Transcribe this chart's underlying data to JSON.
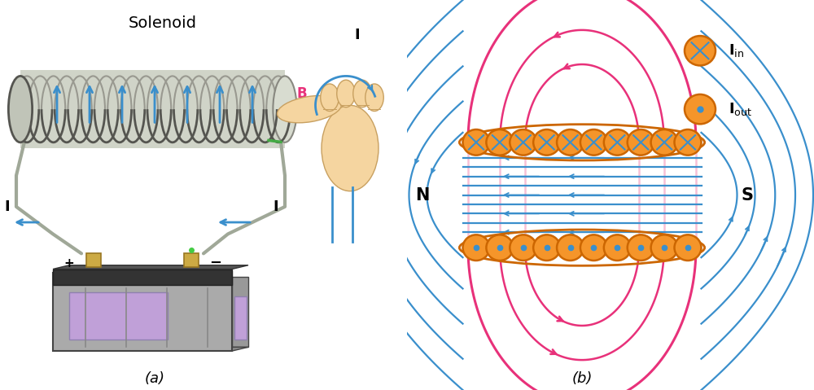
{
  "background_color": "#ffffff",
  "title_a": "(a)",
  "title_b": "(b)",
  "solenoid_label": "Solenoid",
  "B_label": "B",
  "I_label": "I",
  "N_label": "N",
  "S_label": "S",
  "pink": "#e8317a",
  "blue": "#3a8fcc",
  "orange": "#f5952a",
  "orange_edge": "#cc6600",
  "coil_fill": "#c8ccc0",
  "coil_edge": "#7a8070",
  "wire_color": "#a0a898",
  "green_wire": "#44aa44",
  "hand_fill": "#f5d5a0",
  "hand_edge": "#c8a060",
  "bat_gray": "#aaaaaa",
  "bat_dark": "#555555",
  "bat_purple": "#c0a0d0",
  "bat_gold": "#ccaa44"
}
